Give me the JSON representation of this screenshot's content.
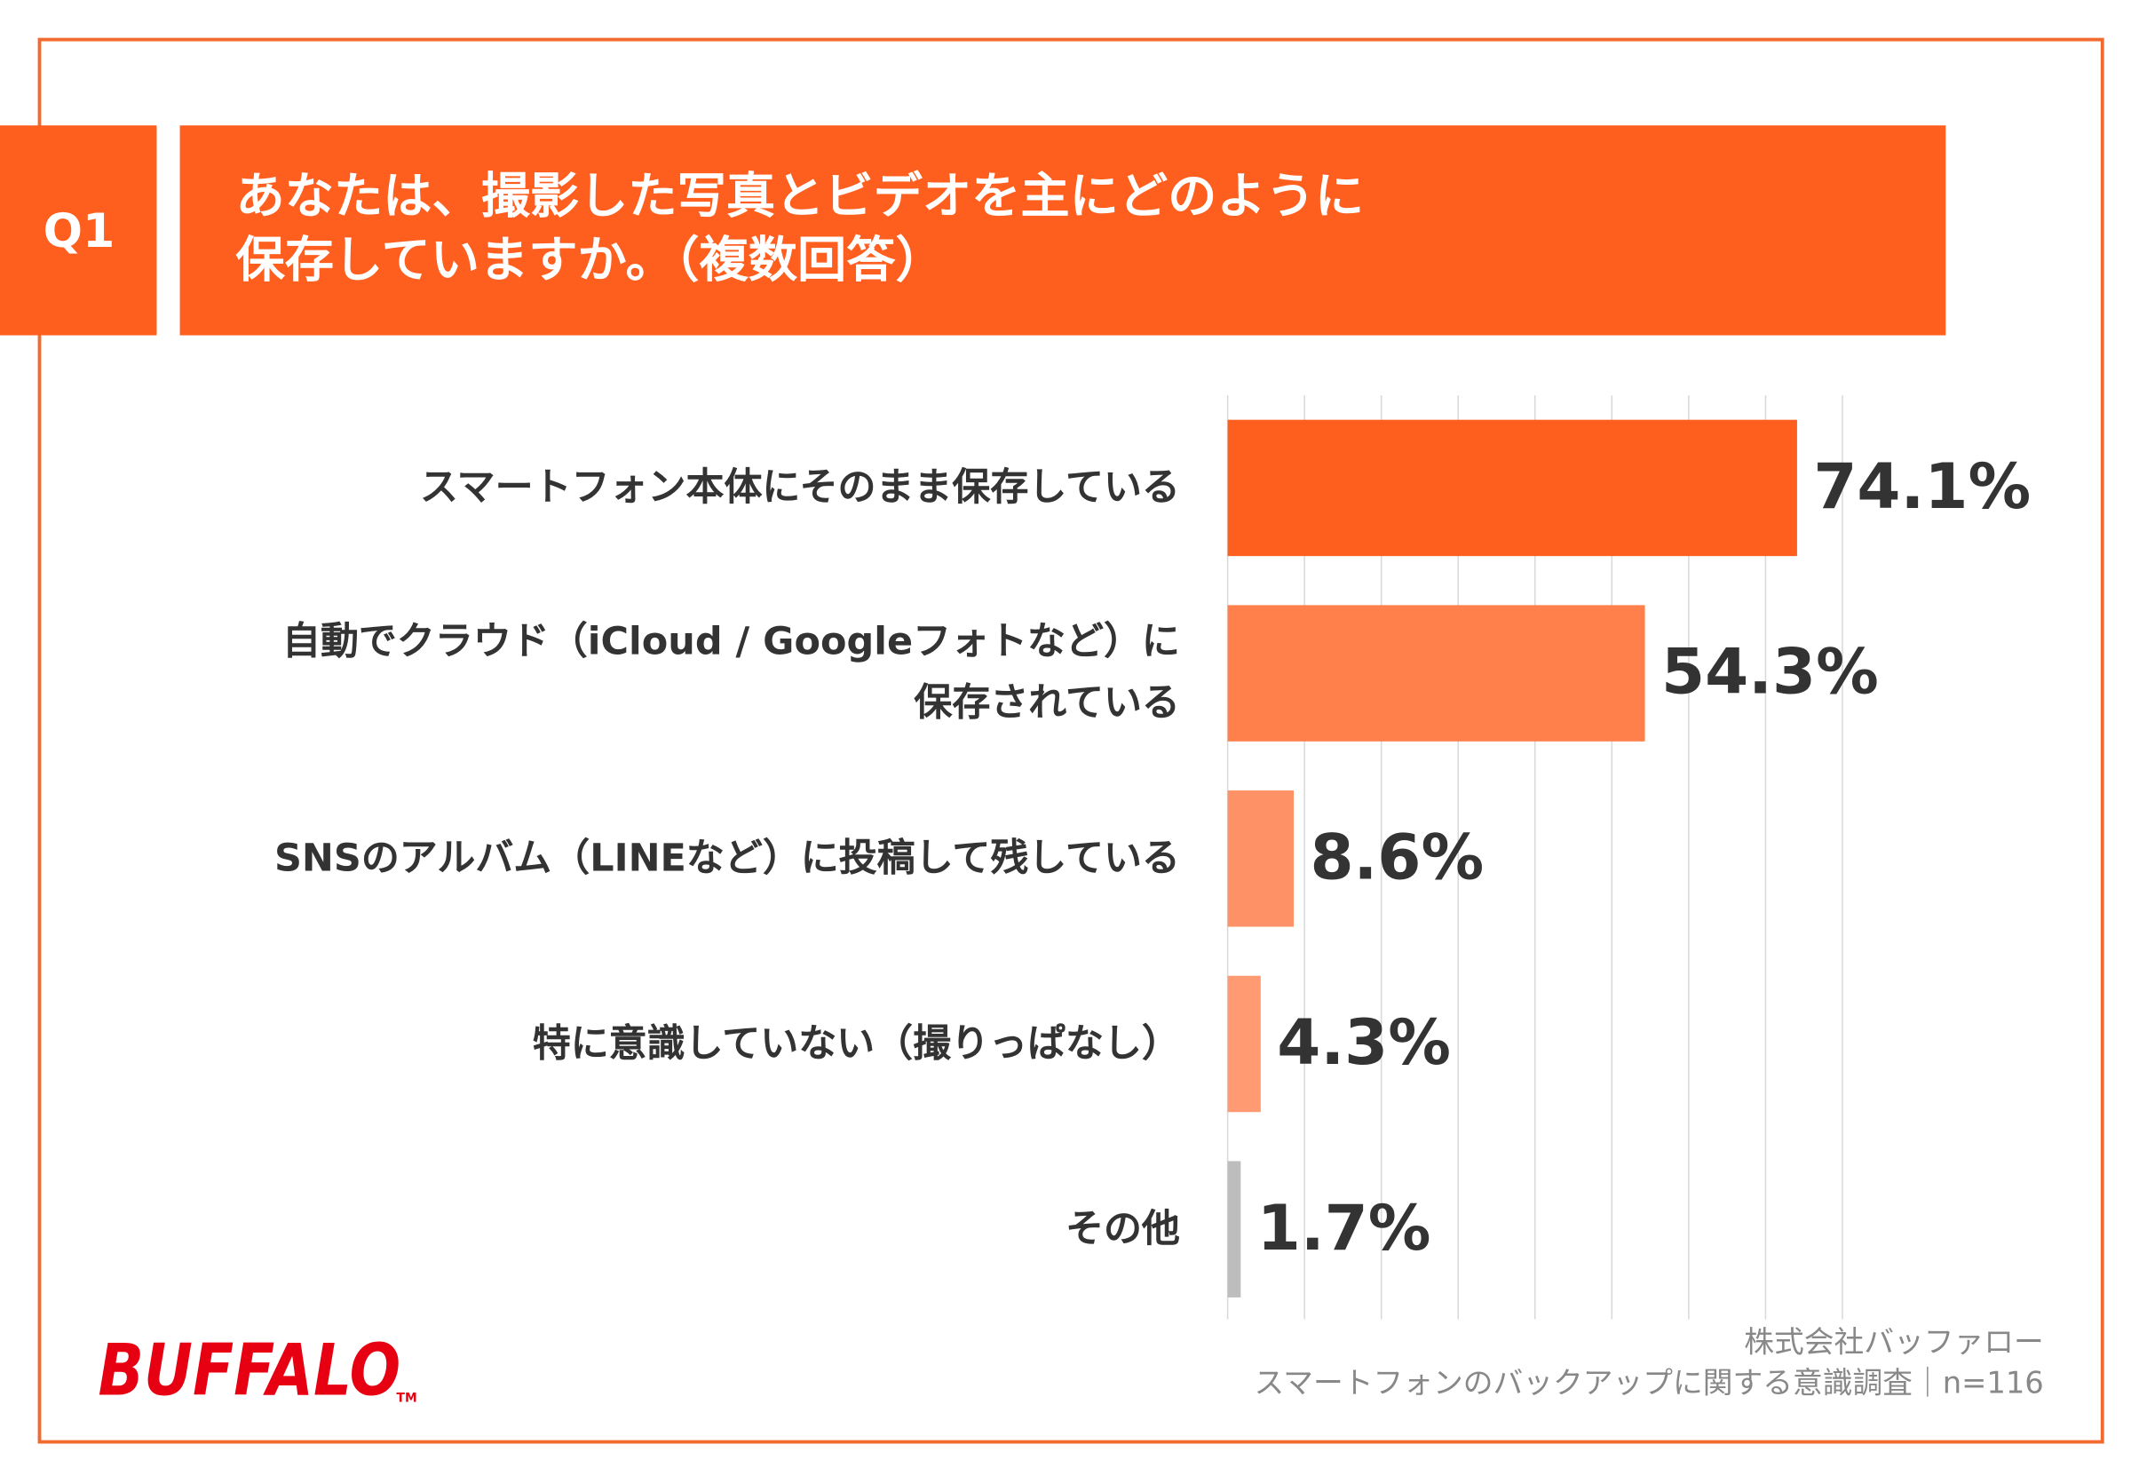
{
  "chart_data": {
    "type": "hbar",
    "badge": "Q1",
    "title": "あなたは、撮影した写真とビデオを主にどのように\n保存していますか。（複数回答）",
    "categories": [
      "スマートフォン本体にそのまま保存している",
      "自動でクラウド（iCloud / Googleフォトなど）に\n保存されている",
      "SNSのアルバム（LINEなど）に投稿して残している",
      "特に意識していない（撮りっぱなし）",
      "その他"
    ],
    "values": [
      74.1,
      54.3,
      8.6,
      4.3,
      1.7
    ],
    "value_labels": [
      "74.1%",
      "54.3%",
      "8.6%",
      "4.3%",
      "1.7%"
    ],
    "colors": [
      "#fe5f1f",
      "#ff804a",
      "#ff9167",
      "#ff9a72",
      "#bdbdbd"
    ],
    "xlim": [
      0,
      80
    ],
    "xticks": [
      0,
      10,
      20,
      30,
      40,
      50,
      60,
      70,
      80
    ],
    "grid": true,
    "source": [
      "株式会社バッファロー",
      "スマートフォンのバックアップに関する意識調査｜n=116"
    ],
    "logo": "BUFFALO",
    "logo_mark": "TM"
  }
}
